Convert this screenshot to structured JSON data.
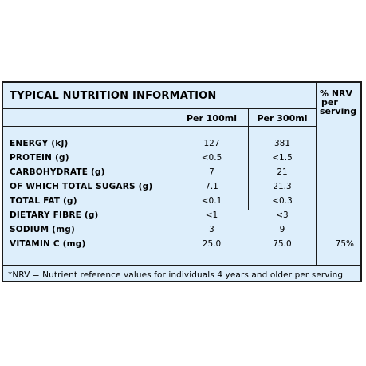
{
  "table": {
    "title": "TYPICAL NUTRITION INFORMATION",
    "columns": {
      "per100": "Per 100ml",
      "per300": "Per 300ml",
      "nrv_line1": "% NRV",
      "nrv_line2": "per",
      "nrv_line3": "serving"
    },
    "rows": [
      {
        "label": "ENERGY (kJ)",
        "per100": "127",
        "per300": "381",
        "nrv": ""
      },
      {
        "label": "PROTEIN (g)",
        "per100": "<0.5",
        "per300": "<1.5",
        "nrv": ""
      },
      {
        "label": "CARBOHYDRATE (g)",
        "per100": "7",
        "per300": "21",
        "nrv": ""
      },
      {
        "label": "OF WHICH TOTAL SUGARS (g)",
        "per100": "7.1",
        "per300": "21.3",
        "nrv": ""
      },
      {
        "label": "TOTAL FAT (g)",
        "per100": "<0.1",
        "per300": "<0.3",
        "nrv": ""
      },
      {
        "label": "DIETARY FIBRE (g)",
        "per100": "<1",
        "per300": "<3",
        "nrv": ""
      },
      {
        "label": "SODIUM (mg)",
        "per100": "3",
        "per300": "9",
        "nrv": ""
      },
      {
        "label": "VITAMIN C (mg)",
        "per100": "25.0",
        "per300": "75.0",
        "nrv": "75%"
      }
    ],
    "footnote": "*NRV = Nutrient reference values for individuals 4 years and older per serving"
  },
  "colors": {
    "background": "#ddeefb",
    "border": "#1a1a1a",
    "text": "#000000"
  }
}
